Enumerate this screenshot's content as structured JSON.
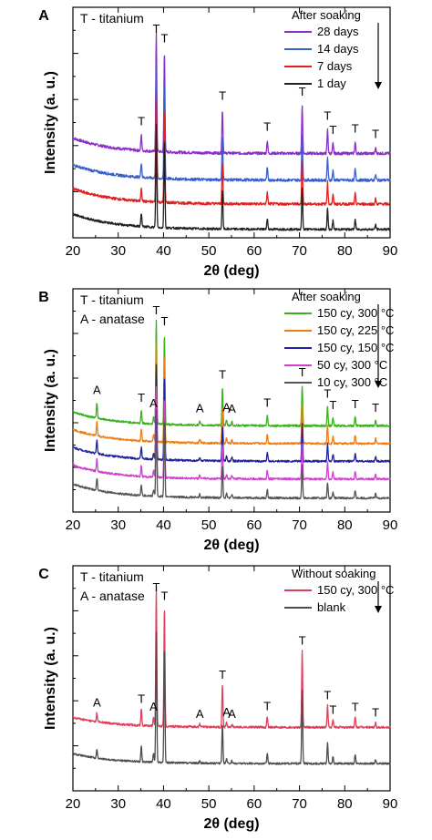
{
  "chart_data": [
    {
      "type": "line",
      "panel_label": "A",
      "xlabel": "2θ (deg)",
      "ylabel": "Intensity (a. u.)",
      "xlim": [
        20,
        90
      ],
      "xticks": [
        20,
        30,
        40,
        50,
        60,
        70,
        80,
        90
      ],
      "y_ticks_labeled": false,
      "legend_title": "After soaking",
      "legend_note": "T - titanium",
      "legend_position": "top-right",
      "grid": false,
      "series": [
        {
          "name": "28 days",
          "color": "#8b2fc9",
          "baseline": 3.0,
          "noise": 0.05
        },
        {
          "name": "14 days",
          "color": "#3a5fcd",
          "baseline": 2.05,
          "noise": 0.05
        },
        {
          "name": "7 days",
          "color": "#e02020",
          "baseline": 1.2,
          "noise": 0.05
        },
        {
          "name": "1 day",
          "color": "#222222",
          "baseline": 0.3,
          "noise": 0.04
        }
      ],
      "peaks": [
        {
          "x": 35.1,
          "h": 0.55,
          "label": "T"
        },
        {
          "x": 38.4,
          "h": 4.2,
          "label": "T"
        },
        {
          "x": 40.2,
          "h": 3.55,
          "label": "T"
        },
        {
          "x": 53.0,
          "h": 1.55,
          "label": "T"
        },
        {
          "x": 62.9,
          "h": 0.45,
          "label": "T"
        },
        {
          "x": 70.6,
          "h": 1.7,
          "label": "T"
        },
        {
          "x": 76.2,
          "h": 0.85,
          "label": "T"
        },
        {
          "x": 77.4,
          "h": 0.35,
          "label": "T"
        },
        {
          "x": 82.3,
          "h": 0.4,
          "label": "T"
        },
        {
          "x": 86.8,
          "h": 0.2,
          "label": "T"
        }
      ]
    },
    {
      "type": "line",
      "panel_label": "B",
      "xlabel": "2θ (deg)",
      "ylabel": "Intensity (a. u.)",
      "xlim": [
        20,
        90
      ],
      "xticks": [
        20,
        30,
        40,
        50,
        60,
        70,
        80,
        90
      ],
      "y_ticks_labeled": false,
      "legend_title": "After soaking",
      "legend_note": "T - titanium\nA - anatase",
      "legend_position": "top-right",
      "grid": false,
      "series": [
        {
          "name": "150 cy, 300 °C",
          "color": "#3cb01e",
          "baseline": 3.4,
          "noise": 0.04
        },
        {
          "name": "150 cy, 225 °C",
          "color": "#f07d10",
          "baseline": 2.7,
          "noise": 0.04
        },
        {
          "name": "150 cy, 150 °C",
          "color": "#22229e",
          "baseline": 2.0,
          "noise": 0.04
        },
        {
          "name": "50 cy, 300 °C",
          "color": "#d040d0",
          "baseline": 1.3,
          "noise": 0.04
        },
        {
          "name": "10 cy, 300 °C",
          "color": "#555555",
          "baseline": 0.55,
          "noise": 0.04
        }
      ],
      "peaks": [
        {
          "x": 25.3,
          "h": 0.6,
          "label": "A"
        },
        {
          "x": 35.1,
          "h": 0.5,
          "label": "T"
        },
        {
          "x": 37.8,
          "h": 0.3,
          "label": "A"
        },
        {
          "x": 38.4,
          "h": 4.1,
          "label": "T"
        },
        {
          "x": 40.2,
          "h": 3.55,
          "label": "T"
        },
        {
          "x": 48.0,
          "h": 0.15,
          "label": "A"
        },
        {
          "x": 53.0,
          "h": 1.5,
          "label": "T"
        },
        {
          "x": 53.9,
          "h": 0.2,
          "label": "A"
        },
        {
          "x": 55.1,
          "h": 0.15,
          "label": "A"
        },
        {
          "x": 62.9,
          "h": 0.4,
          "label": "T"
        },
        {
          "x": 70.6,
          "h": 1.6,
          "label": "T"
        },
        {
          "x": 76.2,
          "h": 0.75,
          "label": "T"
        },
        {
          "x": 77.4,
          "h": 0.3,
          "label": "T"
        },
        {
          "x": 82.3,
          "h": 0.35,
          "label": "T"
        },
        {
          "x": 86.8,
          "h": 0.2,
          "label": "T"
        }
      ]
    },
    {
      "type": "line",
      "panel_label": "C",
      "xlabel": "2θ (deg)",
      "ylabel": "Intensity (a. u.)",
      "xlim": [
        20,
        90
      ],
      "xticks": [
        20,
        30,
        40,
        50,
        60,
        70,
        80,
        90
      ],
      "y_ticks_labeled": false,
      "legend_title": "Without soaking",
      "legend_note": "T - titanium\nA - anatase",
      "legend_position": "top-right",
      "grid": false,
      "series": [
        {
          "name": "150 cy, 300 °C",
          "color": "#e0405a",
          "baseline": 3.5,
          "noise": 0.06
        },
        {
          "name": "blank",
          "color": "#4d4d4d",
          "baseline": 1.5,
          "noise": 0.05
        }
      ],
      "peaks": [
        {
          "x": 25.3,
          "h": 0.5,
          "label": "A"
        },
        {
          "x": 35.1,
          "h": 0.9,
          "label": "T"
        },
        {
          "x": 37.8,
          "h": 0.5,
          "label": "A"
        },
        {
          "x": 38.4,
          "h": 7.5,
          "label": "T"
        },
        {
          "x": 40.2,
          "h": 6.6,
          "label": "T"
        },
        {
          "x": 48.0,
          "h": 0.15,
          "label": "A"
        },
        {
          "x": 53.0,
          "h": 2.3,
          "label": "T"
        },
        {
          "x": 53.9,
          "h": 0.25,
          "label": "A"
        },
        {
          "x": 55.1,
          "h": 0.15,
          "label": "A"
        },
        {
          "x": 62.9,
          "h": 0.6,
          "label": "T"
        },
        {
          "x": 70.6,
          "h": 4.2,
          "label": "T"
        },
        {
          "x": 76.2,
          "h": 1.2,
          "label": "T"
        },
        {
          "x": 77.4,
          "h": 0.4,
          "label": "T"
        },
        {
          "x": 82.3,
          "h": 0.55,
          "label": "T"
        },
        {
          "x": 86.8,
          "h": 0.25,
          "label": "T"
        }
      ]
    }
  ]
}
